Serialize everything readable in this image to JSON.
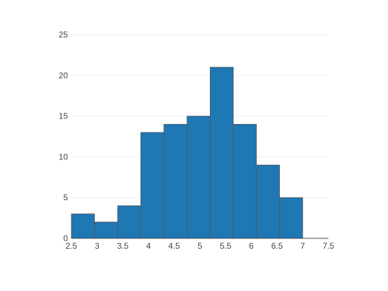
{
  "chart_data": {
    "type": "bar",
    "title": "",
    "xlabel": "",
    "ylabel": "",
    "bin_edges": [
      2.5,
      2.95,
      3.4,
      3.85,
      4.3,
      4.75,
      5.2,
      5.65,
      6.1,
      6.55,
      7.0
    ],
    "values": [
      3,
      2,
      4,
      13,
      14,
      15,
      21,
      14,
      9,
      5
    ],
    "xlim": [
      2.5,
      7.5
    ],
    "ylim": [
      0,
      25
    ],
    "x_ticks": [
      "2.5",
      "3",
      "3.5",
      "4",
      "4.5",
      "5",
      "5.5",
      "6",
      "6.5",
      "7",
      "7.5"
    ],
    "y_ticks": [
      "0",
      "5",
      "10",
      "15",
      "20",
      "25"
    ],
    "grid": true,
    "bar_color": "#1f77b4"
  }
}
